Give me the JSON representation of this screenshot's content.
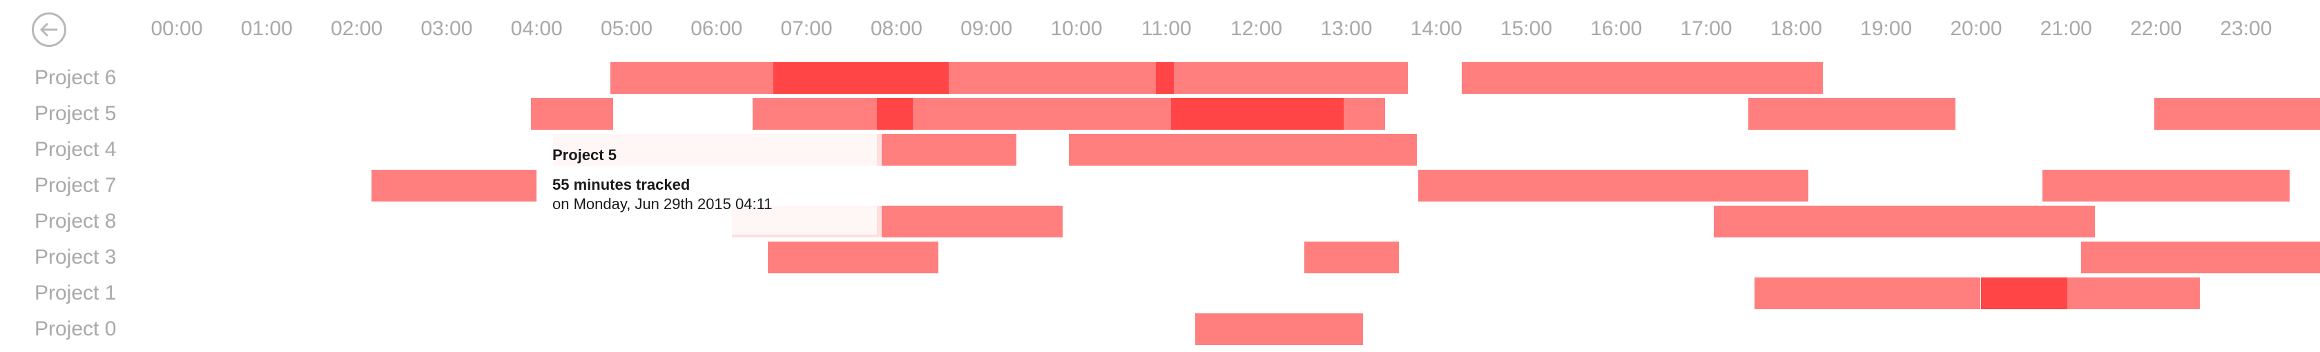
{
  "timeline": {
    "hours": [
      "00:00",
      "01:00",
      "02:00",
      "03:00",
      "04:00",
      "05:00",
      "06:00",
      "07:00",
      "08:00",
      "09:00",
      "10:00",
      "11:00",
      "12:00",
      "13:00",
      "14:00",
      "15:00",
      "16:00",
      "17:00",
      "18:00",
      "19:00",
      "20:00",
      "21:00",
      "22:00",
      "23:00"
    ],
    "rows": [
      {
        "label": "Project 6",
        "segments": [
          {
            "start": "04:49",
            "end": "06:38",
            "shade": "normal"
          },
          {
            "start": "06:38",
            "end": "08:35",
            "shade": "dark"
          },
          {
            "start": "08:35",
            "end": "10:53",
            "shade": "normal"
          },
          {
            "start": "10:53",
            "end": "11:05",
            "shade": "dark"
          },
          {
            "start": "11:05",
            "end": "13:41",
            "shade": "normal"
          },
          {
            "start": "14:17",
            "end": "18:18",
            "shade": "normal"
          }
        ]
      },
      {
        "label": "Project 5",
        "segments": [
          {
            "start": "03:56",
            "end": "04:51",
            "shade": "normal"
          },
          {
            "start": "06:24",
            "end": "07:47",
            "shade": "normal"
          },
          {
            "start": "07:47",
            "end": "08:11",
            "shade": "dark"
          },
          {
            "start": "08:11",
            "end": "11:03",
            "shade": "normal"
          },
          {
            "start": "11:03",
            "end": "12:58",
            "shade": "dark"
          },
          {
            "start": "12:58",
            "end": "13:26",
            "shade": "normal"
          },
          {
            "start": "17:28",
            "end": "19:46",
            "shade": "normal"
          },
          {
            "start": "21:59",
            "end": "23:55",
            "shade": "normal"
          }
        ]
      },
      {
        "label": "Project 4",
        "segments": [
          {
            "start": "04:11",
            "end": "06:15",
            "shade": "faded"
          },
          {
            "start": "06:15",
            "end": "06:56",
            "shade": "faded"
          },
          {
            "start": "06:56",
            "end": "07:50",
            "shade": "faded"
          },
          {
            "start": "07:50",
            "end": "09:20",
            "shade": "normal"
          },
          {
            "start": "09:55",
            "end": "13:47",
            "shade": "normal"
          }
        ]
      },
      {
        "label": "Project 7",
        "segments": [
          {
            "start": "02:10",
            "end": "04:00",
            "shade": "normal"
          },
          {
            "start": "13:48",
            "end": "18:08",
            "shade": "normal"
          },
          {
            "start": "20:44",
            "end": "23:29",
            "shade": "normal"
          }
        ]
      },
      {
        "label": "Project 8",
        "segments": [
          {
            "start": "06:10",
            "end": "07:50",
            "shade": "faded"
          },
          {
            "start": "07:50",
            "end": "09:51",
            "shade": "normal"
          },
          {
            "start": "17:05",
            "end": "21:19",
            "shade": "normal"
          }
        ]
      },
      {
        "label": "Project 3",
        "segments": [
          {
            "start": "06:34",
            "end": "08:28",
            "shade": "normal"
          },
          {
            "start": "12:32",
            "end": "13:35",
            "shade": "normal"
          },
          {
            "start": "21:10",
            "end": "23:55",
            "shade": "normal"
          }
        ]
      },
      {
        "label": "Project 1",
        "segments": [
          {
            "start": "17:32",
            "end": "20:03",
            "shade": "normal"
          },
          {
            "start": "20:03",
            "end": "21:01",
            "shade": "dark"
          },
          {
            "start": "21:01",
            "end": "22:29",
            "shade": "normal"
          }
        ]
      },
      {
        "label": "Project 0",
        "segments": [
          {
            "start": "11:19",
            "end": "13:11",
            "shade": "normal"
          }
        ]
      }
    ]
  },
  "tooltip": {
    "title": "Project 5",
    "amount": "55 minutes tracked",
    "date": "on Monday, Jun 29th 2015 04:11"
  },
  "colors": {
    "bar": "#ff7f7f",
    "bar_dark": "#ff4545",
    "label": "#a9a9a9",
    "back_icon": "#b8b8b8"
  },
  "icons": {
    "back": "arrow-left-circle-icon"
  }
}
